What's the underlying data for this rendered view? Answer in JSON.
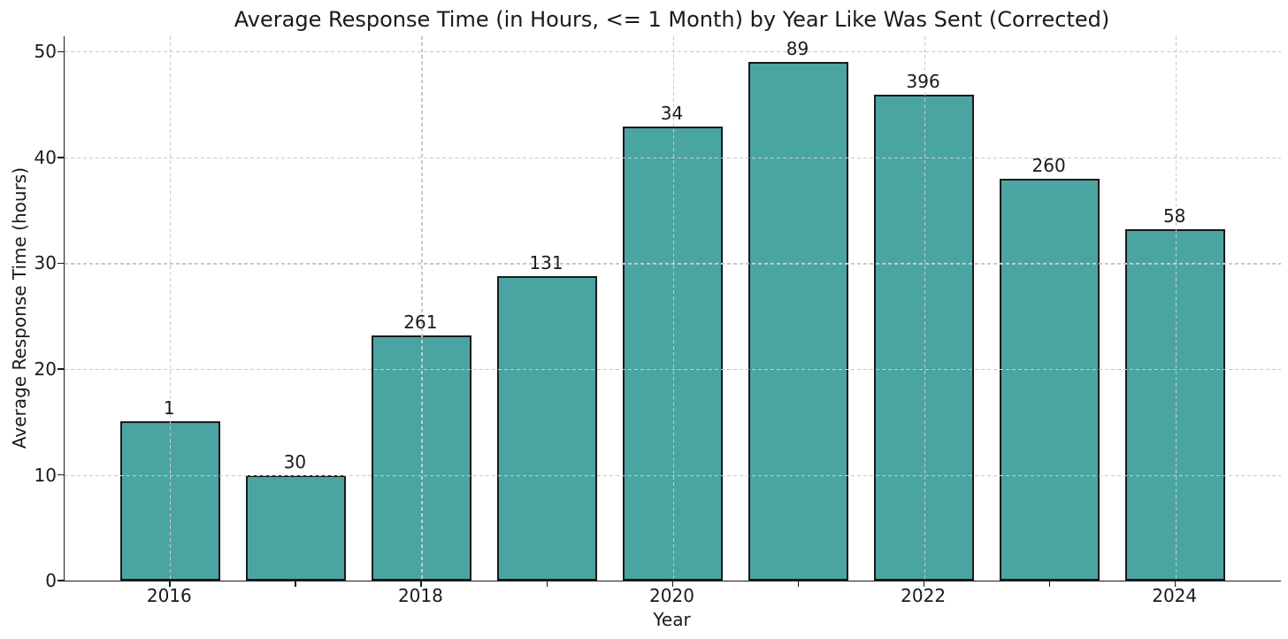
{
  "chart_data": {
    "type": "bar",
    "title": "Average Response Time (in Hours, <= 1 Month) by Year Like Was Sent (Corrected)",
    "xlabel": "Year",
    "ylabel": "Average Response Time (hours)",
    "categories": [
      2016,
      2017,
      2018,
      2019,
      2020,
      2021,
      2022,
      2023,
      2024
    ],
    "values": [
      15.1,
      10.0,
      23.2,
      28.8,
      42.9,
      49.0,
      45.9,
      38.0,
      33.2
    ],
    "bar_labels": [
      "1",
      "30",
      "261",
      "131",
      "34",
      "89",
      "396",
      "260",
      "58"
    ],
    "x_tick_positions": [
      2016,
      2018,
      2020,
      2022,
      2024
    ],
    "x_tick_labels": [
      "2016",
      "2018",
      "2020",
      "2022",
      "2024"
    ],
    "y_ticks": [
      0,
      10,
      20,
      30,
      40,
      50
    ],
    "y_tick_labels": [
      "0",
      "10",
      "20",
      "30",
      "40",
      "50"
    ],
    "xlim": [
      2015.16,
      2024.84
    ],
    "ylim": [
      0,
      51.45
    ],
    "bar_width_units": 0.8,
    "grid": true,
    "legend": null,
    "colors": {
      "bar_fill": "#4aa5a2",
      "bar_edge": "#1a1a1a",
      "grid": "#c9c9c9",
      "spine": "#1a1a1a",
      "text": "#1a1a1a",
      "background": "#ffffff"
    }
  }
}
